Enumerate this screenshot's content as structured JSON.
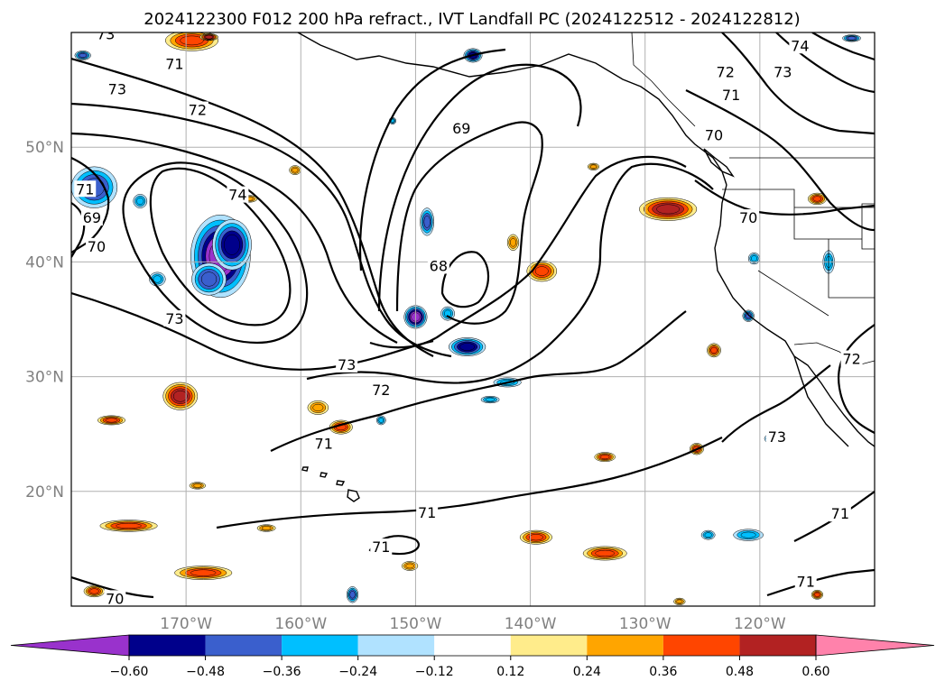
{
  "chart_data": {
    "type": "heatmap",
    "title": "2024122300 F012 200 hPa refract., IVT Landfall PC (2024122512 - 2024122812)",
    "map": {
      "lon_range": [
        -180,
        -110
      ],
      "lat_range": [
        10,
        60
      ],
      "lon_ticks": [
        -170,
        -160,
        -150,
        -140,
        -130,
        -120
      ],
      "lon_tick_labels": [
        "170°W",
        "160°W",
        "150°W",
        "140°W",
        "130°W",
        "120°W"
      ],
      "lat_ticks": [
        20,
        30,
        40,
        50
      ],
      "lat_tick_labels": [
        "20°N",
        "30°N",
        "40°N",
        "50°N"
      ],
      "grid": true
    },
    "colorbar": {
      "orientation": "horizontal",
      "extend": "both",
      "levels": [
        -0.6,
        -0.48,
        -0.36,
        -0.24,
        -0.12,
        0.12,
        0.24,
        0.36,
        0.48,
        0.6
      ],
      "tick_labels": [
        "−0.60",
        "−0.48",
        "−0.36",
        "−0.24",
        "−0.12",
        "0.12",
        "0.24",
        "0.36",
        "0.48",
        "0.60"
      ],
      "colors": [
        "#9932cc",
        "#00008b",
        "#3a5fcd",
        "#00bfff",
        "#b0e2ff",
        "#ffffff",
        "#ffec8b",
        "#ffa500",
        "#ff4500",
        "#b22222",
        "#ff82ab"
      ]
    },
    "contour_labels": [
      {
        "text": "73",
        "lon": -177.0,
        "lat": 59.8
      },
      {
        "text": "71",
        "lon": -171.0,
        "lat": 57.2
      },
      {
        "text": "73",
        "lon": -176.0,
        "lat": 55.0
      },
      {
        "text": "72",
        "lon": -169.0,
        "lat": 53.2
      },
      {
        "text": "74",
        "lon": -165.5,
        "lat": 45.8
      },
      {
        "text": "71",
        "lon": -178.8,
        "lat": 46.3
      },
      {
        "text": "69",
        "lon": -178.2,
        "lat": 43.8
      },
      {
        "text": "70",
        "lon": -177.8,
        "lat": 41.3
      },
      {
        "text": "73",
        "lon": -171.0,
        "lat": 35.0
      },
      {
        "text": "69",
        "lon": -146.0,
        "lat": 51.6
      },
      {
        "text": "68",
        "lon": -148.0,
        "lat": 39.6
      },
      {
        "text": "73",
        "lon": -156.0,
        "lat": 31.0
      },
      {
        "text": "72",
        "lon": -153.0,
        "lat": 28.8
      },
      {
        "text": "71",
        "lon": -158.0,
        "lat": 24.1
      },
      {
        "text": "71",
        "lon": -149.0,
        "lat": 18.1
      },
      {
        "text": "71",
        "lon": -153.0,
        "lat": 15.1
      },
      {
        "text": "70",
        "lon": -176.2,
        "lat": 10.6
      },
      {
        "text": "72",
        "lon": -123.0,
        "lat": 56.5
      },
      {
        "text": "73",
        "lon": -118.0,
        "lat": 56.5
      },
      {
        "text": "74",
        "lon": -116.5,
        "lat": 58.8
      },
      {
        "text": "71",
        "lon": -122.5,
        "lat": 54.5
      },
      {
        "text": "70",
        "lon": -124.0,
        "lat": 51.0
      },
      {
        "text": "70",
        "lon": -121.0,
        "lat": 43.8
      },
      {
        "text": "72",
        "lon": -112.0,
        "lat": 31.5
      },
      {
        "text": "73",
        "lon": -118.5,
        "lat": 24.7
      },
      {
        "text": "71",
        "lon": -113.0,
        "lat": 18.0
      },
      {
        "text": "71",
        "lon": -116.0,
        "lat": 12.1
      }
    ],
    "anomaly_regions": [
      {
        "lon": -167,
        "lat": 40.5,
        "rx": 2.6,
        "ry": 3.6,
        "value": -0.62
      },
      {
        "lon": -166,
        "lat": 41.5,
        "rx": 1.7,
        "ry": 2.2,
        "value": -0.5
      },
      {
        "lon": -168,
        "lat": 38.5,
        "rx": 1.5,
        "ry": 1.4,
        "value": -0.4
      },
      {
        "lon": -150,
        "lat": 35.2,
        "rx": 1.0,
        "ry": 1.0,
        "value": -0.62
      },
      {
        "lon": -145.5,
        "lat": 32.6,
        "rx": 1.6,
        "ry": 0.8,
        "value": -0.5
      },
      {
        "lon": -149,
        "lat": 43.5,
        "rx": 0.6,
        "ry": 1.2,
        "value": -0.38
      },
      {
        "lon": -178,
        "lat": 46.5,
        "rx": 2.0,
        "ry": 1.8,
        "value": -0.4
      },
      {
        "lon": -145.0,
        "lat": 58.0,
        "rx": 0.8,
        "ry": 0.6,
        "value": -0.5
      },
      {
        "lon": -147.2,
        "lat": 35.5,
        "rx": 0.6,
        "ry": 0.6,
        "value": -0.3
      },
      {
        "lon": -114.0,
        "lat": 40.0,
        "rx": 0.5,
        "ry": 1.0,
        "value": -0.3
      },
      {
        "lon": -172.5,
        "lat": 38.5,
        "rx": 0.7,
        "ry": 0.6,
        "value": -0.3
      },
      {
        "lon": -174,
        "lat": 45.3,
        "rx": 0.6,
        "ry": 0.6,
        "value": -0.3
      },
      {
        "lon": -128,
        "lat": 44.6,
        "rx": 2.5,
        "ry": 1.0,
        "value": 0.52
      },
      {
        "lon": -170.5,
        "lat": 28.3,
        "rx": 1.5,
        "ry": 1.2,
        "value": 0.5
      },
      {
        "lon": -139,
        "lat": 39.2,
        "rx": 1.3,
        "ry": 0.9,
        "value": 0.42
      },
      {
        "lon": -139.5,
        "lat": 16.0,
        "rx": 1.4,
        "ry": 0.6,
        "value": 0.4
      },
      {
        "lon": -175,
        "lat": 17.0,
        "rx": 2.5,
        "ry": 0.5,
        "value": 0.4
      },
      {
        "lon": -168.5,
        "lat": 12.9,
        "rx": 2.5,
        "ry": 0.6,
        "value": 0.45
      },
      {
        "lon": -169.5,
        "lat": 59.3,
        "rx": 2.3,
        "ry": 0.9,
        "value": 0.45
      },
      {
        "lon": -133.5,
        "lat": 14.6,
        "rx": 1.9,
        "ry": 0.6,
        "value": 0.45
      },
      {
        "lon": -156.5,
        "lat": 25.6,
        "rx": 1.0,
        "ry": 0.6,
        "value": 0.4
      },
      {
        "lon": -158.5,
        "lat": 27.3,
        "rx": 0.9,
        "ry": 0.6,
        "value": 0.35
      },
      {
        "lon": -176.5,
        "lat": 26.2,
        "rx": 1.2,
        "ry": 0.4,
        "value": 0.4
      },
      {
        "lon": -160.5,
        "lat": 48.0,
        "rx": 0.5,
        "ry": 0.4,
        "value": 0.35
      },
      {
        "lon": -141.5,
        "lat": 41.7,
        "rx": 0.5,
        "ry": 0.7,
        "value": 0.3
      },
      {
        "lon": -124,
        "lat": 32.3,
        "rx": 0.6,
        "ry": 0.6,
        "value": 0.4
      },
      {
        "lon": -125.5,
        "lat": 23.7,
        "rx": 0.6,
        "ry": 0.5,
        "value": 0.4
      },
      {
        "lon": -133.5,
        "lat": 23.0,
        "rx": 0.9,
        "ry": 0.4,
        "value": 0.4
      },
      {
        "lon": -115.0,
        "lat": 45.5,
        "rx": 0.8,
        "ry": 0.5,
        "value": 0.4
      },
      {
        "lon": -169,
        "lat": 20.5,
        "rx": 0.7,
        "ry": 0.3,
        "value": 0.3
      },
      {
        "lon": -163.0,
        "lat": 16.8,
        "rx": 0.8,
        "ry": 0.3,
        "value": 0.35
      },
      {
        "lon": -178,
        "lat": 11.3,
        "rx": 0.9,
        "ry": 0.5,
        "value": 0.4
      },
      {
        "lon": -150.5,
        "lat": 13.5,
        "rx": 0.7,
        "ry": 0.4,
        "value": 0.35
      },
      {
        "lon": -127,
        "lat": 10.4,
        "rx": 0.5,
        "ry": 0.3,
        "value": 0.35
      },
      {
        "lon": -115,
        "lat": 11.0,
        "rx": 0.5,
        "ry": 0.4,
        "value": 0.4
      },
      {
        "lon": -134.5,
        "lat": 48.3,
        "rx": 0.5,
        "ry": 0.3,
        "value": 0.3
      },
      {
        "lon": -164.5,
        "lat": 45.5,
        "rx": 0.7,
        "ry": 0.3,
        "value": 0.35
      },
      {
        "lon": -121,
        "lat": 16.2,
        "rx": 1.3,
        "ry": 0.5,
        "value": -0.3
      },
      {
        "lon": -124.5,
        "lat": 16.2,
        "rx": 0.6,
        "ry": 0.4,
        "value": -0.3
      },
      {
        "lon": -153,
        "lat": 26.2,
        "rx": 0.4,
        "ry": 0.4,
        "value": -0.3
      },
      {
        "lon": -155.5,
        "lat": 11.0,
        "rx": 0.5,
        "ry": 0.7,
        "value": -0.38
      },
      {
        "lon": -142,
        "lat": 29.5,
        "rx": 1.2,
        "ry": 0.4,
        "value": -0.28
      },
      {
        "lon": -143.5,
        "lat": 28.0,
        "rx": 0.8,
        "ry": 0.3,
        "value": -0.28
      },
      {
        "lon": -121.0,
        "lat": 35.3,
        "rx": 0.5,
        "ry": 0.5,
        "value": -0.4
      },
      {
        "lon": -120.5,
        "lat": 40.3,
        "rx": 0.5,
        "ry": 0.5,
        "value": -0.3
      },
      {
        "lon": -119,
        "lat": 24.6,
        "rx": 0.6,
        "ry": 0.4,
        "value": -0.3
      },
      {
        "lon": -152,
        "lat": 52.3,
        "rx": 0.3,
        "ry": 0.3,
        "value": -0.3
      },
      {
        "lon": -179,
        "lat": 58.0,
        "rx": 0.7,
        "ry": 0.4,
        "value": -0.38
      },
      {
        "lon": -168,
        "lat": 59.6,
        "rx": 0.8,
        "ry": 0.3,
        "value": 0.55
      },
      {
        "lon": -112.0,
        "lat": 59.5,
        "rx": 0.8,
        "ry": 0.3,
        "value": -0.38
      }
    ]
  }
}
